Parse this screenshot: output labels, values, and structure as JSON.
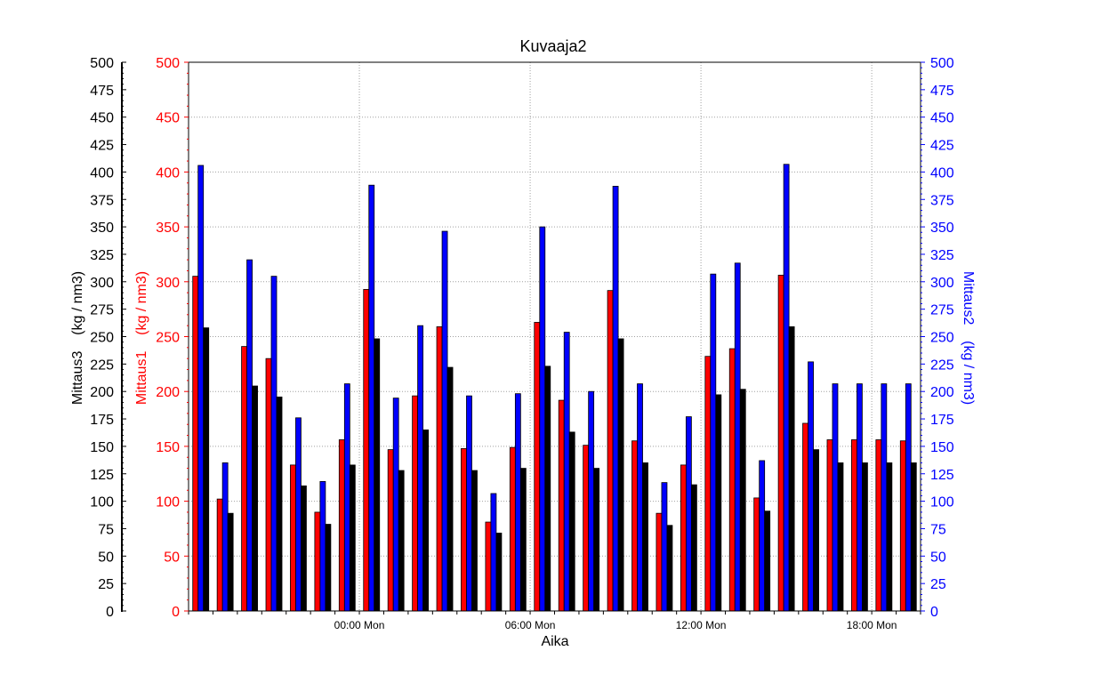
{
  "chart_data": {
    "type": "bar",
    "title": "Kuvaaja2",
    "xlabel": "Aika",
    "x_tick_labels": [
      "00:00 Mon",
      "06:00 Mon",
      "12:00 Mon",
      "18:00 Mon"
    ],
    "grid": true,
    "axes": {
      "left_outer": {
        "label": "Mittaus3    (kg / nm3)",
        "color": "#000000",
        "ylim": [
          0,
          500
        ],
        "ticks": [
          "0",
          "25",
          "50",
          "75",
          "100",
          "125",
          "150",
          "175",
          "200",
          "225",
          "250",
          "275",
          "300",
          "325",
          "350",
          "375",
          "400",
          "425",
          "450",
          "475",
          "500"
        ]
      },
      "left_inner": {
        "label": "Mittaus1    (kg / nm3)",
        "color": "#ff0000",
        "ylim": [
          0,
          500
        ],
        "ticks": [
          "0",
          "50",
          "100",
          "150",
          "200",
          "250",
          "300",
          "350",
          "400",
          "450",
          "500"
        ]
      },
      "right": {
        "label": "Mittaus2    (kg / nm3)",
        "color": "#0000ff",
        "ylim": [
          0,
          500
        ],
        "ticks": [
          "0",
          "25",
          "50",
          "75",
          "100",
          "125",
          "150",
          "175",
          "200",
          "225",
          "250",
          "275",
          "300",
          "325",
          "350",
          "375",
          "400",
          "425",
          "450",
          "475",
          "500"
        ]
      }
    },
    "series": [
      {
        "name": "Mittaus1",
        "color": "#ff0000",
        "values": [
          305,
          102,
          241,
          230,
          133,
          90,
          156,
          293,
          147,
          196,
          259,
          148,
          81,
          149,
          263,
          192,
          151,
          292,
          155,
          89,
          133,
          232,
          239,
          103,
          306,
          171,
          156,
          156,
          156,
          155
        ]
      },
      {
        "name": "Mittaus2",
        "color": "#0000ff",
        "values": [
          406,
          135,
          320,
          305,
          176,
          118,
          207,
          388,
          194,
          260,
          346,
          196,
          107,
          198,
          350,
          254,
          200,
          387,
          207,
          117,
          177,
          307,
          317,
          137,
          407,
          227,
          207,
          207,
          207,
          207
        ]
      },
      {
        "name": "Mittaus3",
        "color": "#000000",
        "values": [
          258,
          89,
          205,
          195,
          114,
          79,
          133,
          248,
          128,
          165,
          222,
          128,
          71,
          130,
          223,
          163,
          130,
          248,
          135,
          78,
          115,
          197,
          202,
          91,
          259,
          147,
          135,
          135,
          135,
          135
        ]
      }
    ]
  }
}
